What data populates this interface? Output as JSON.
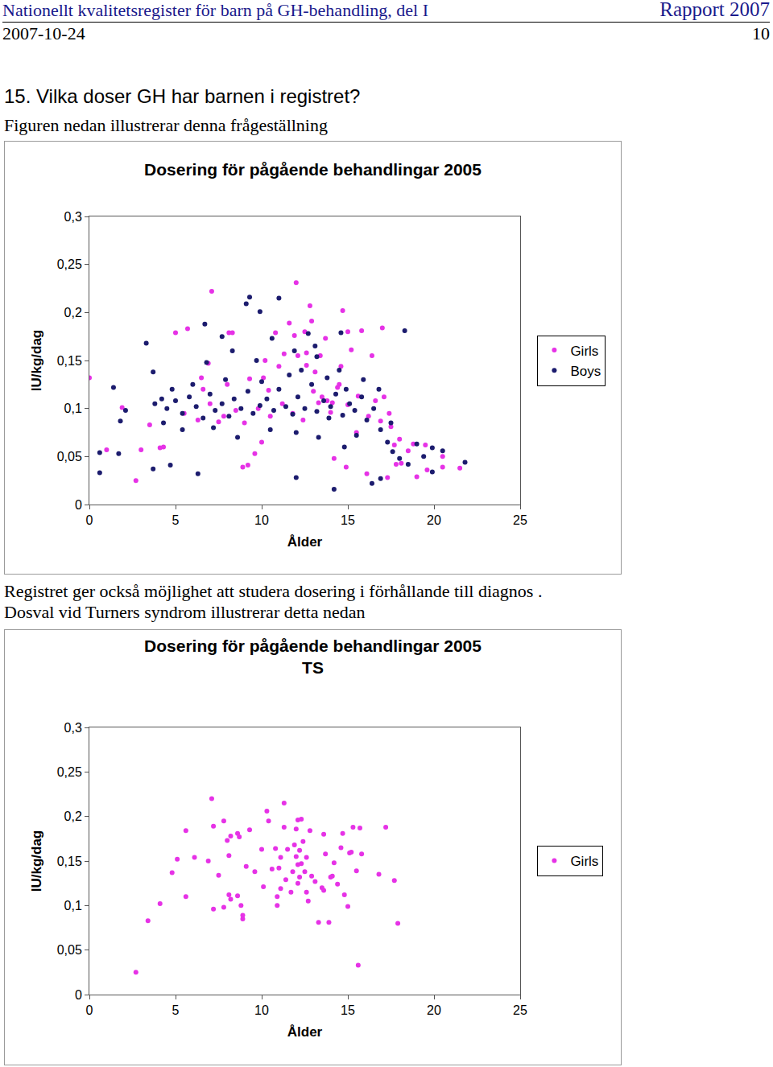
{
  "header": {
    "title": "Nationellt kvalitetsregister för barn på GH-behandling, del I",
    "report": "Rapport 2007",
    "date": "2007-10-24",
    "page": "10"
  },
  "heading": "15. Vilka doser GH har barnen i registret?",
  "paragraphs": [
    [
      "Figuren nedan illustrerar denna frågeställning"
    ],
    [
      "Registret ger också  möjlighet att studera dosering i förhållande till diagnos .",
      "Dosval vid Turners syndrom illustrerar detta nedan"
    ]
  ],
  "chart_data": [
    {
      "type": "scatter",
      "title": "Dosering för pågående behandlingar 2005",
      "x_label": "Ålder",
      "y_label": "IU/kg/dag",
      "xlim": [
        0,
        25
      ],
      "xticks": [
        0,
        5,
        10,
        15,
        20,
        25
      ],
      "ylim": [
        0,
        0.3
      ],
      "yticks": [
        0,
        {
          "value": 0.05,
          "label": "0,05"
        },
        {
          "value": 0.1,
          "label": "0,1"
        },
        {
          "value": 0.15,
          "label": "0,15"
        },
        {
          "value": 0.2,
          "label": "0,2"
        },
        {
          "value": 0.25,
          "label": "0,25"
        },
        {
          "value": 0.3,
          "label": "0,3"
        }
      ],
      "grid": false,
      "legend": "right",
      "series": [
        {
          "name": "Girls",
          "color": "#e632e6",
          "marker": "circle",
          "x": [
            0.0,
            1.0,
            1.9,
            2.7,
            3.0,
            3.5,
            4.1,
            4.3,
            5.0,
            5.7,
            7.1,
            6.5,
            6.9,
            7.5,
            8.1,
            8.3,
            8.9,
            9.2,
            9.3,
            9.6,
            10.0,
            10.1,
            10.4,
            10.8,
            11.0,
            11.3,
            11.6,
            11.9,
            12.0,
            12.1,
            12.5,
            12.6,
            12.8,
            12.9,
            13.1,
            13.3,
            13.7,
            13.8,
            14.1,
            14.2,
            14.4,
            14.6,
            14.7,
            14.9,
            15.0,
            15.2,
            15.5,
            15.8,
            16.1,
            16.4,
            16.6,
            17.0,
            17.1,
            17.3,
            17.5,
            17.7,
            17.8,
            18.0,
            18.1,
            18.5,
            18.8,
            19.0,
            19.5,
            19.6,
            20.5,
            20.5,
            21.5,
            5.5,
            6.3,
            7.0,
            7.8,
            8.5,
            9.0,
            9.8,
            10.5,
            11.2,
            11.8,
            12.4,
            13.0,
            13.5,
            14.0,
            14.5,
            15.0,
            15.6,
            16.2,
            16.9,
            17.4,
            12.6,
            13.4,
            10.2,
            8.0,
            6.6
          ],
          "values": [
            0.132,
            0.057,
            0.101,
            0.025,
            0.057,
            0.083,
            0.059,
            0.06,
            0.179,
            0.183,
            0.222,
            0.132,
            0.147,
            0.086,
            0.179,
            0.179,
            0.039,
            0.041,
            0.131,
            0.053,
            0.065,
            0.132,
            0.119,
            0.179,
            0.144,
            0.157,
            0.189,
            0.176,
            0.231,
            0.155,
            0.18,
            0.158,
            0.207,
            0.191,
            0.138,
            0.106,
            0.173,
            0.108,
            0.106,
            0.048,
            0.122,
            0.144,
            0.202,
            0.039,
            0.18,
            0.161,
            0.075,
            0.181,
            0.032,
            0.155,
            0.108,
            0.184,
            0.112,
            0.028,
            0.081,
            0.062,
            0.042,
            0.068,
            0.043,
            0.056,
            0.063,
            0.029,
            0.062,
            0.036,
            0.05,
            0.039,
            0.038,
            0.095,
            0.088,
            0.105,
            0.092,
            0.098,
            0.085,
            0.1,
            0.092,
            0.105,
            0.095,
            0.088,
            0.118,
            0.112,
            0.096,
            0.125,
            0.104,
            0.113,
            0.092,
            0.087,
            0.095,
            0.145,
            0.155,
            0.15,
            0.125,
            0.12
          ]
        },
        {
          "name": "Boys",
          "color": "#1c1c6e",
          "marker": "circle",
          "x": [
            0.6,
            0.6,
            1.4,
            1.7,
            1.8,
            2.1,
            3.3,
            3.7,
            3.7,
            4.2,
            4.7,
            6.3,
            6.7,
            9.1,
            9.3,
            9.9,
            11.0,
            18.3,
            19.0,
            19.9,
            19.9,
            21.8,
            20.5,
            16.9,
            16.4,
            14.2,
            12.0,
            14.6,
            13.2,
            10.6,
            7.7,
            4.5,
            5.0,
            5.4,
            5.8,
            6.2,
            6.6,
            7.0,
            7.3,
            7.7,
            8.1,
            8.4,
            8.8,
            9.2,
            9.5,
            9.9,
            10.3,
            10.7,
            11.0,
            11.4,
            11.8,
            12.1,
            12.5,
            12.9,
            13.2,
            13.6,
            14.0,
            14.3,
            14.7,
            15.1,
            15.4,
            15.8,
            16.1,
            16.5,
            16.9,
            17.3,
            17.6,
            18.0,
            14.5,
            13.8,
            12.3,
            11.6,
            10.0,
            7.9,
            6.0,
            15.5,
            14.8,
            13.3,
            12.0,
            10.5,
            8.6,
            7.2,
            5.4,
            4.8,
            13.9,
            14.9,
            15.9,
            16.8,
            17.5,
            18.5,
            19.4,
            13.1,
            12.7,
            11.9,
            9.7,
            8.3,
            6.8,
            4.3,
            3.8
          ],
          "values": [
            0.054,
            0.033,
            0.122,
            0.053,
            0.087,
            0.098,
            0.168,
            0.138,
            0.037,
            0.11,
            0.041,
            0.032,
            0.188,
            0.209,
            0.216,
            0.201,
            0.215,
            0.181,
            0.063,
            0.059,
            0.034,
            0.044,
            0.056,
            0.027,
            0.022,
            0.016,
            0.028,
            0.179,
            0.154,
            0.173,
            0.175,
            0.1,
            0.108,
            0.095,
            0.112,
            0.102,
            0.09,
            0.115,
            0.098,
            0.105,
            0.092,
            0.11,
            0.1,
            0.118,
            0.095,
            0.103,
            0.11,
            0.098,
            0.12,
            0.102,
            0.094,
            0.112,
            0.1,
            0.125,
            0.097,
            0.108,
            0.102,
            0.115,
            0.093,
            0.105,
            0.098,
            0.112,
            0.088,
            0.1,
            0.078,
            0.065,
            0.055,
            0.048,
            0.14,
            0.132,
            0.14,
            0.135,
            0.128,
            0.13,
            0.125,
            0.072,
            0.06,
            0.07,
            0.075,
            0.078,
            0.07,
            0.08,
            0.078,
            0.12,
            0.09,
            0.12,
            0.13,
            0.12,
            0.085,
            0.042,
            0.05,
            0.165,
            0.178,
            0.16,
            0.15,
            0.16,
            0.148,
            0.085,
            0.105
          ]
        }
      ]
    },
    {
      "type": "scatter",
      "title": "Dosering för pågående behandlingar 2005",
      "subtitle": "TS",
      "x_label": "Ålder",
      "y_label": "IU/kg/dag",
      "xlim": [
        0,
        25
      ],
      "xticks": [
        0,
        5,
        10,
        15,
        20,
        25
      ],
      "ylim": [
        0,
        0.3
      ],
      "yticks": [
        0,
        {
          "value": 0.05,
          "label": "0,05"
        },
        {
          "value": 0.1,
          "label": "0,1"
        },
        {
          "value": 0.15,
          "label": "0,15"
        },
        {
          "value": 0.2,
          "label": "0,2"
        },
        {
          "value": 0.25,
          "label": "0,25"
        },
        {
          "value": 0.3,
          "label": "0,3"
        }
      ],
      "grid": false,
      "legend": "right",
      "series": [
        {
          "name": "Girls",
          "color": "#e632e6",
          "marker": "circle",
          "x": [
            2.7,
            3.4,
            4.1,
            4.8,
            5.1,
            5.6,
            5.6,
            6.1,
            7.1,
            6.9,
            7.2,
            7.2,
            7.5,
            7.8,
            7.8,
            8.0,
            8.1,
            8.1,
            8.2,
            8.2,
            8.6,
            8.6,
            8.7,
            8.9,
            8.9,
            8.8,
            9.1,
            9.3,
            9.6,
            10.0,
            10.1,
            10.3,
            10.4,
            10.6,
            10.8,
            10.9,
            10.9,
            11.0,
            11.1,
            11.1,
            11.3,
            11.3,
            11.4,
            11.5,
            11.7,
            11.8,
            11.9,
            12.0,
            12.0,
            12.1,
            12.1,
            12.1,
            12.2,
            12.2,
            12.3,
            12.3,
            12.4,
            12.5,
            12.6,
            12.6,
            12.7,
            12.8,
            12.9,
            13.1,
            13.3,
            13.5,
            13.6,
            13.6,
            13.7,
            13.9,
            14.0,
            14.1,
            14.2,
            14.4,
            14.6,
            14.7,
            14.8,
            15.0,
            15.1,
            15.2,
            15.3,
            15.5,
            15.6,
            15.7,
            15.8,
            16.8,
            17.2,
            17.7,
            17.9
          ],
          "values": [
            0.025,
            0.083,
            0.102,
            0.137,
            0.152,
            0.184,
            0.11,
            0.154,
            0.22,
            0.15,
            0.189,
            0.096,
            0.134,
            0.195,
            0.098,
            0.173,
            0.112,
            0.156,
            0.107,
            0.178,
            0.181,
            0.111,
            0.177,
            0.089,
            0.085,
            0.1,
            0.144,
            0.185,
            0.138,
            0.163,
            0.121,
            0.206,
            0.195,
            0.141,
            0.164,
            0.1,
            0.11,
            0.142,
            0.119,
            0.154,
            0.215,
            0.188,
            0.129,
            0.163,
            0.115,
            0.138,
            0.168,
            0.155,
            0.186,
            0.196,
            0.146,
            0.125,
            0.162,
            0.132,
            0.147,
            0.197,
            0.172,
            0.138,
            0.115,
            0.154,
            0.105,
            0.184,
            0.133,
            0.127,
            0.081,
            0.12,
            0.18,
            0.117,
            0.158,
            0.081,
            0.132,
            0.133,
            0.148,
            0.124,
            0.165,
            0.181,
            0.112,
            0.099,
            0.159,
            0.16,
            0.188,
            0.139,
            0.033,
            0.187,
            0.158,
            0.135,
            0.188,
            0.128,
            0.08
          ]
        }
      ]
    }
  ]
}
